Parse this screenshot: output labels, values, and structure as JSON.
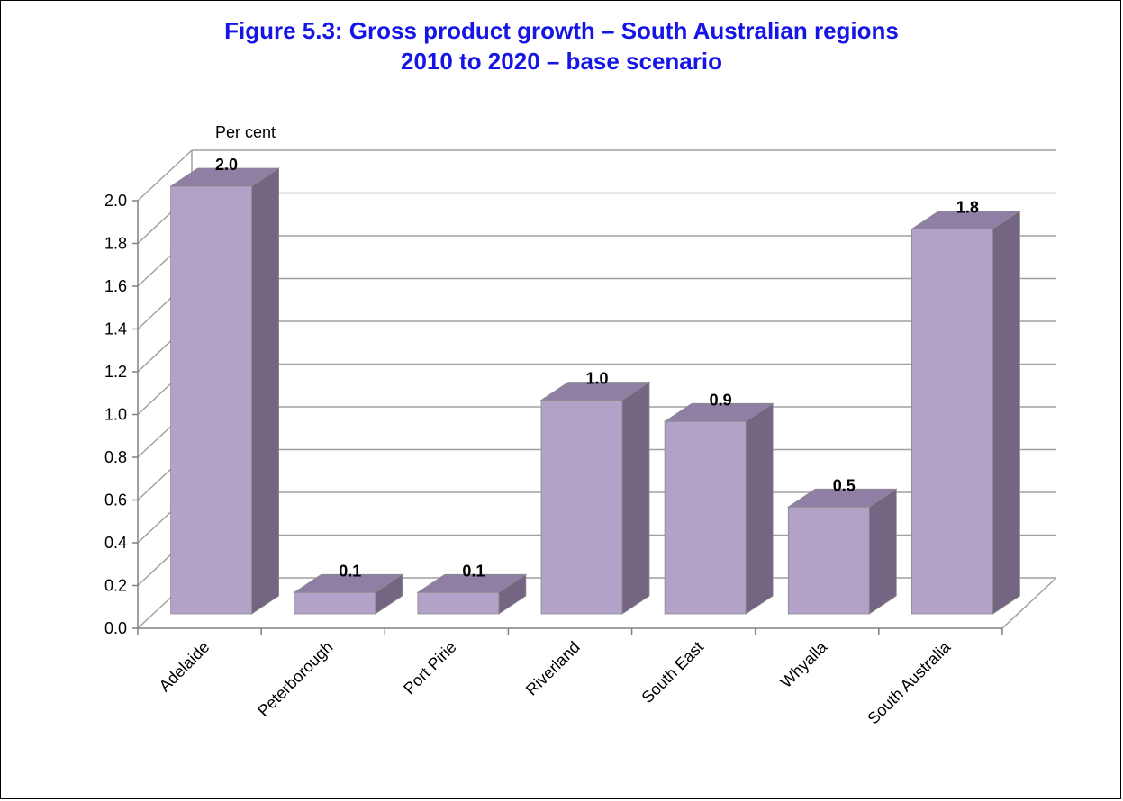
{
  "chart_data": {
    "type": "bar",
    "title": "Figure 5.3: Gross product growth – South Australian regions",
    "subtitle": "2010 to 2020 – base scenario",
    "ylabel": "Per cent",
    "xlabel": "",
    "categories": [
      "Adelaide",
      "Peterborough",
      "Port Pirie",
      "Riverland",
      "South East",
      "Whyalla",
      "South Australia"
    ],
    "values": [
      2.0,
      0.1,
      0.1,
      1.0,
      0.9,
      0.5,
      1.8
    ],
    "data_labels": [
      "2.0",
      "0.1",
      "0.1",
      "1.0",
      "0.9",
      "0.5",
      "1.8"
    ],
    "ylim": [
      0,
      2.0
    ],
    "yticks": [
      "0.0",
      "0.2",
      "0.4",
      "0.6",
      "0.8",
      "1.0",
      "1.2",
      "1.4",
      "1.6",
      "1.8",
      "2.0"
    ],
    "grid": true,
    "legend": "none",
    "three_d": true,
    "colors": {
      "bar_front": "#b2a2c8",
      "bar_top": "#8f7fa4",
      "bar_side": "#746582",
      "grid": "#a0a0a0",
      "title": "#1515e6"
    }
  }
}
